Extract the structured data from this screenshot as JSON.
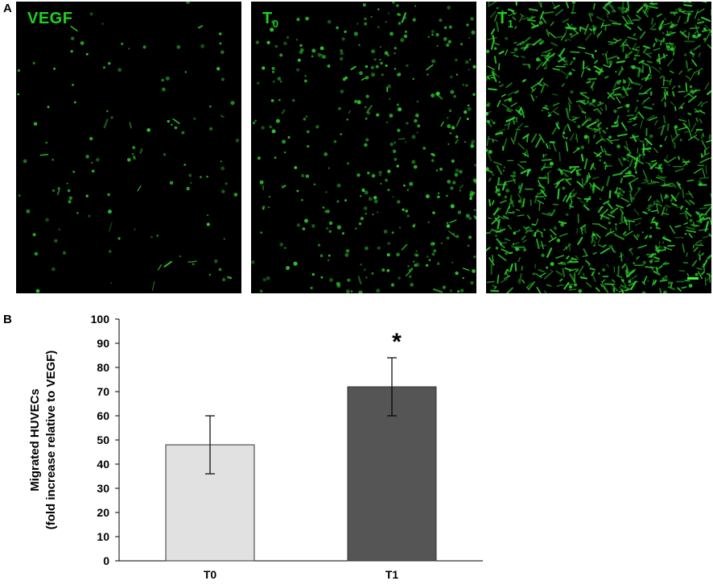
{
  "panel_a": {
    "letter": "A",
    "images": [
      {
        "label": "VEGF",
        "sub": "",
        "cell_density": 0.05,
        "elongated": 0.15
      },
      {
        "label": "T",
        "sub": "0",
        "cell_density": 0.45,
        "elongated": 0.05
      },
      {
        "label": "T",
        "sub": "1",
        "cell_density": 1.0,
        "elongated": 0.85
      }
    ],
    "stain_color": "#2fd42f"
  },
  "panel_b": {
    "letter": "B"
  },
  "chart_data": {
    "type": "bar",
    "categories": [
      "T0",
      "T1"
    ],
    "values": [
      48,
      72
    ],
    "errors": [
      12,
      12
    ],
    "bar_colors": [
      "#e1e1e1",
      "#555555"
    ],
    "annotation": "*",
    "ylabel_line1": "Migrated HUVECs",
    "ylabel_line2": "(fold increase relative to VEGF)",
    "xlabel": "",
    "title": "",
    "ylim": [
      0,
      100
    ],
    "yticks": [
      0,
      10,
      20,
      30,
      40,
      50,
      60,
      70,
      80,
      90,
      100
    ],
    "grid": false
  }
}
